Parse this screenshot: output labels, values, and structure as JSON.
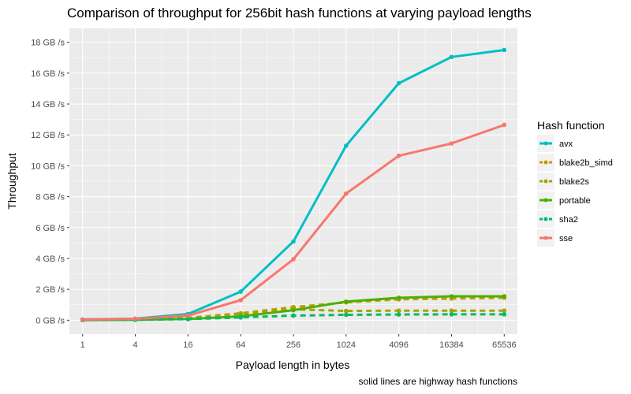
{
  "chart_data": {
    "type": "line",
    "title": "Comparison of throughput for 256bit hash functions at varying payload lengths",
    "xlabel": "Payload length in bytes",
    "ylabel": "Throughput",
    "caption": "solid lines are highway hash functions",
    "x_scale": "log2",
    "y_unit_suffix": " GB /s",
    "ylim": [
      0,
      18
    ],
    "grid": true,
    "legend_title": "Hash function",
    "legend_placement": "right",
    "x": [
      1,
      4,
      16,
      64,
      256,
      1024,
      4096,
      16384,
      65536
    ],
    "x_tick_labels": [
      "1",
      "4",
      "16",
      "64",
      "256",
      "1024",
      "4096",
      "16384",
      "65536"
    ],
    "y_ticks": [
      0,
      2,
      4,
      6,
      8,
      10,
      12,
      14,
      16,
      18
    ],
    "y_tick_labels": [
      "0 GB /s",
      "2 GB /s",
      "4 GB /s",
      "6 GB /s",
      "8 GB /s",
      "10 GB /s",
      "12 GB /s",
      "14 GB /s",
      "16 GB /s",
      "18 GB /s"
    ],
    "series": [
      {
        "name": "avx",
        "color": "#00BFC4",
        "dashed": false,
        "values": [
          0.05,
          0.1,
          0.4,
          1.85,
          5.1,
          11.3,
          15.35,
          17.05,
          17.5
        ]
      },
      {
        "name": "blake2b_simd",
        "color": "#C49A00",
        "dashed": true,
        "values": [
          0.02,
          0.05,
          0.15,
          0.45,
          0.85,
          1.15,
          1.35,
          1.4,
          1.45
        ]
      },
      {
        "name": "blake2s",
        "color": "#A3A500",
        "dashed": true,
        "values": [
          0.02,
          0.05,
          0.15,
          0.4,
          0.7,
          0.6,
          0.62,
          0.62,
          0.62
        ]
      },
      {
        "name": "portable",
        "color": "#4CB000",
        "dashed": false,
        "values": [
          0.01,
          0.03,
          0.08,
          0.25,
          0.65,
          1.2,
          1.45,
          1.55,
          1.55
        ]
      },
      {
        "name": "sha2",
        "color": "#00BA6A",
        "dashed": true,
        "values": [
          0.01,
          0.03,
          0.07,
          0.18,
          0.3,
          0.35,
          0.37,
          0.38,
          0.38
        ]
      },
      {
        "name": "sse",
        "color": "#F8766D",
        "dashed": false,
        "values": [
          0.04,
          0.09,
          0.3,
          1.3,
          3.95,
          8.2,
          10.65,
          11.45,
          12.65
        ]
      }
    ]
  }
}
